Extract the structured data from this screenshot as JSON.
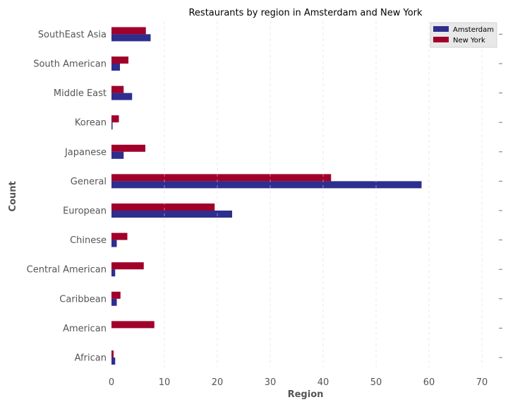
{
  "chart_data": {
    "type": "bar",
    "orientation": "horizontal",
    "title": "Restaurants by region in Amsterdam and New York",
    "xlabel": "Region",
    "ylabel": "Count",
    "xlim": [
      0,
      72
    ],
    "xticks": [
      0,
      10,
      20,
      30,
      40,
      50,
      60,
      70
    ],
    "grid": "vertical dashed",
    "legend_position": "top-right",
    "categories": [
      "African",
      "American",
      "Caribbean",
      "Central American",
      "Chinese",
      "European",
      "General",
      "Japanese",
      "Korean",
      "Middle East",
      "South American",
      "SouthEast Asia"
    ],
    "series": [
      {
        "name": "Amsterdam",
        "color": "#2e2e8e",
        "values": [
          0.7,
          0,
          1.0,
          0.7,
          1.0,
          22.8,
          58.6,
          2.3,
          0.2,
          3.9,
          1.6,
          7.4
        ]
      },
      {
        "name": "New York",
        "color": "#a0002a",
        "values": [
          0.4,
          8.1,
          1.7,
          6.1,
          3.0,
          19.5,
          41.5,
          6.4,
          1.4,
          2.3,
          3.2,
          6.5
        ]
      }
    ]
  }
}
